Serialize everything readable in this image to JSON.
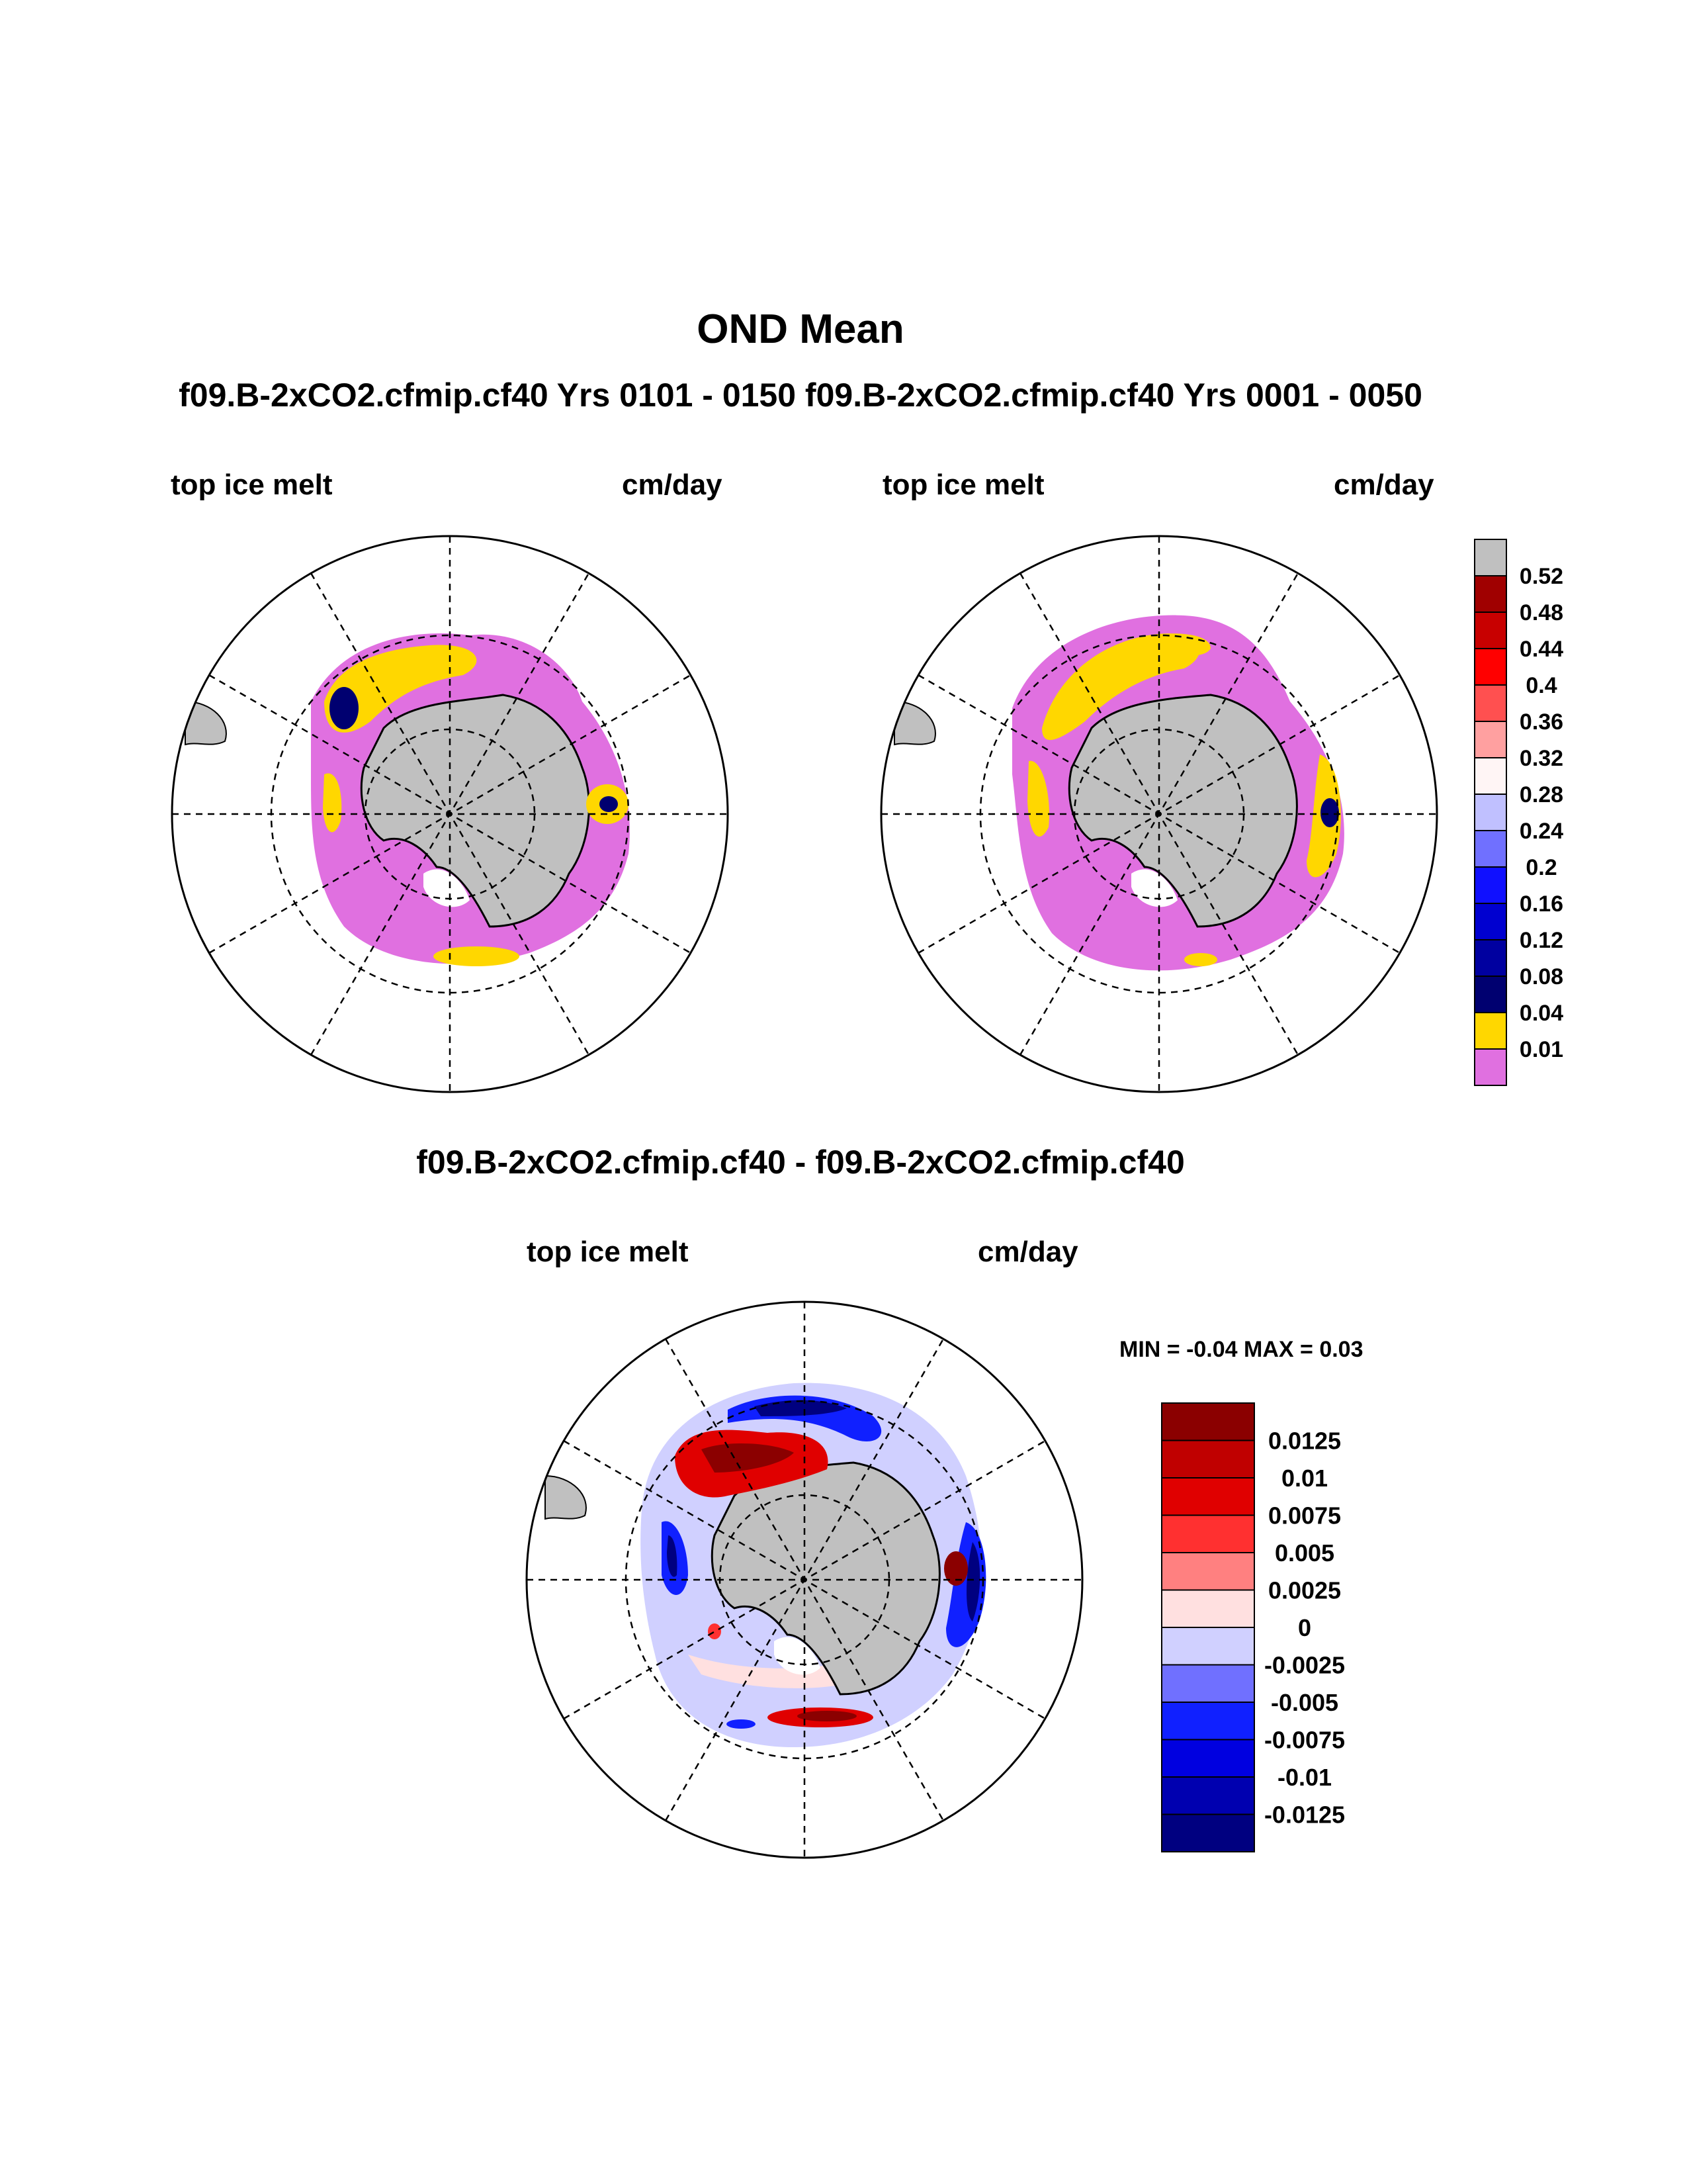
{
  "title": "OND Mean",
  "subtitle": "f09.B-2xCO2.cfmip.cf40  Yrs 0101 - 0150 f09.B-2xCO2.cfmip.cf40  Yrs 0001 - 0050",
  "panels": [
    {
      "variable": "top ice melt",
      "units": "cm/day"
    },
    {
      "variable": "top ice melt",
      "units": "cm/day"
    }
  ],
  "difference": {
    "title": "f09.B-2xCO2.cfmip.cf40 - f09.B-2xCO2.cfmip.cf40",
    "variable": "top ice melt",
    "units": "cm/day",
    "minmax": "MIN =  -0.04 MAX =   0.03"
  },
  "colorbar_main": {
    "labels": [
      "0.52",
      "0.48",
      "0.44",
      "0.4",
      "0.36",
      "0.32",
      "0.28",
      "0.24",
      "0.2",
      "0.16",
      "0.12",
      "0.08",
      "0.04",
      "0.01"
    ],
    "colors": [
      "#c0c0c0",
      "#a00000",
      "#c80000",
      "#ff0000",
      "#ff5050",
      "#ffa0a0",
      "#fff5f5",
      "#c0c0ff",
      "#7070ff",
      "#1010ff",
      "#0000d0",
      "#0000a0",
      "#000070",
      "#ffd700",
      "#e070e0"
    ]
  },
  "colorbar_diff": {
    "labels": [
      "0.0125",
      "0.01",
      "0.0075",
      "0.005",
      "0.0025",
      "0",
      "-0.0025",
      "-0.005",
      "-0.0075",
      "-0.01",
      "-0.0125"
    ],
    "colors": [
      "#8b0000",
      "#c00000",
      "#e00000",
      "#ff3030",
      "#ff8080",
      "#ffe0e0",
      "#d0d0ff",
      "#7070ff",
      "#1020ff",
      "#0000e0",
      "#0000b0",
      "#000080"
    ]
  }
}
